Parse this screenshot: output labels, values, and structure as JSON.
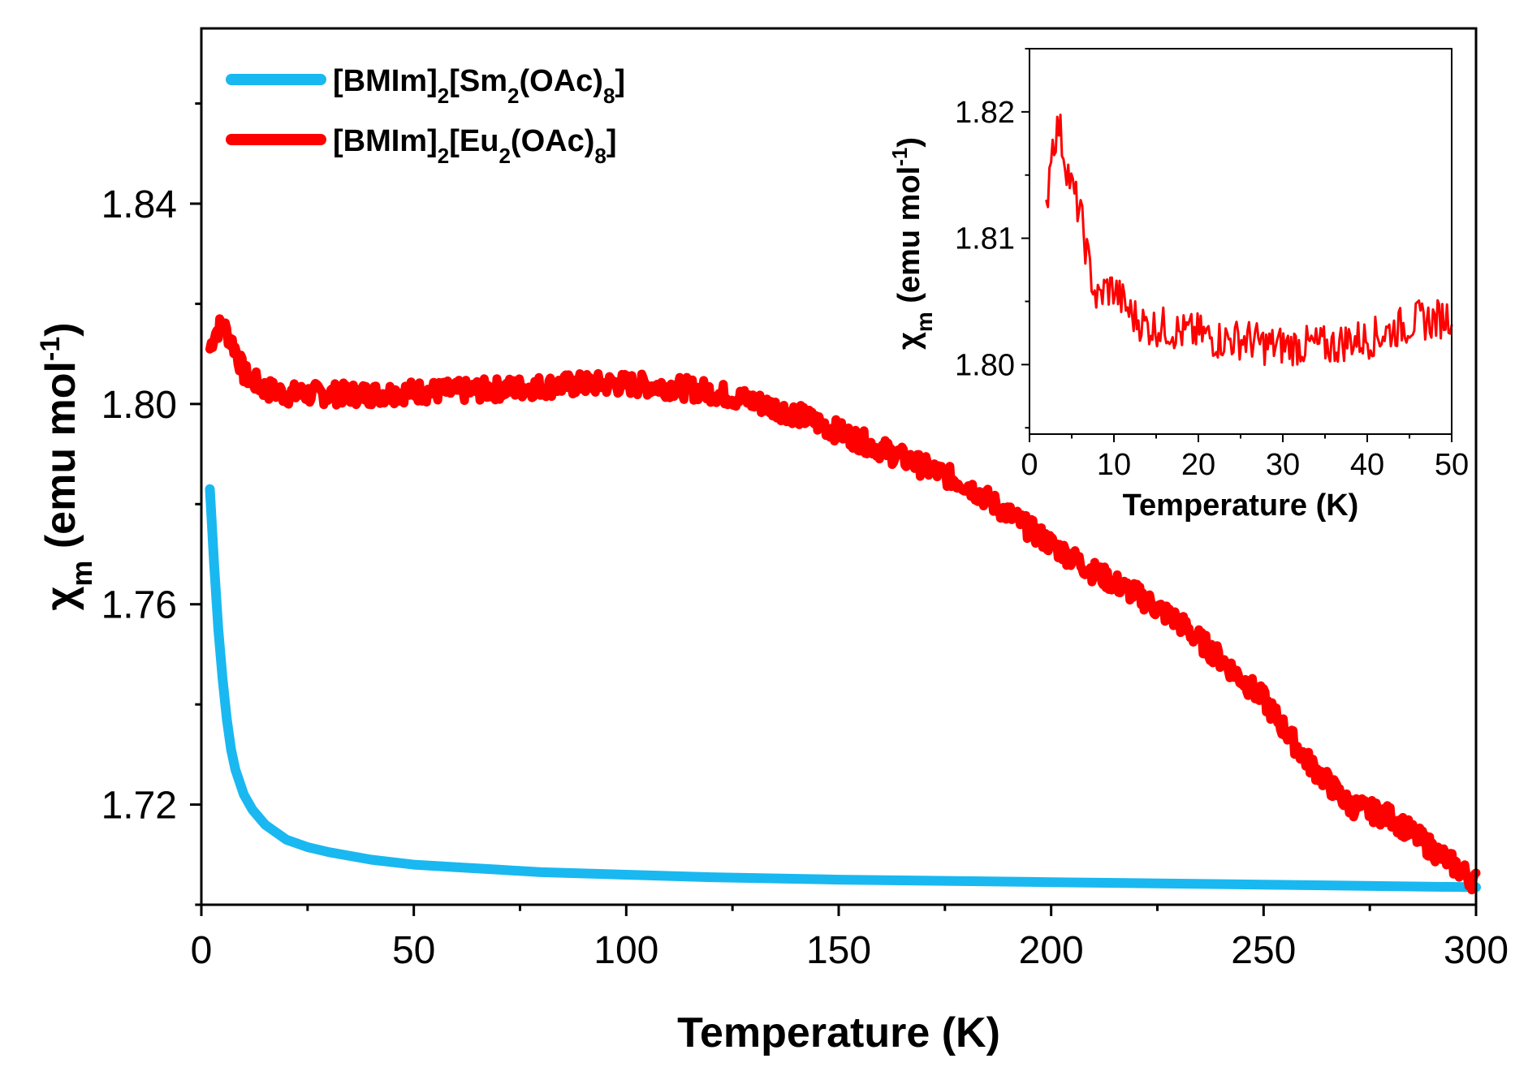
{
  "chart_data": [
    {
      "type": "line",
      "title": "",
      "xlabel": "Temperature (K)",
      "ylabel": "χm (emu mol-1)",
      "ylabel_parts": {
        "chi": "χ",
        "chi_sub": "m",
        "unit": " (emu mol",
        "unit_sup": "-1",
        "close": ")"
      },
      "xlim": [
        0,
        300
      ],
      "ylim": [
        1.7,
        1.875
      ],
      "xticks": [
        0,
        50,
        100,
        150,
        200,
        250,
        300
      ],
      "yticks": [
        1.72,
        1.76,
        1.8,
        1.84
      ],
      "xtick_labels": [
        "0",
        "50",
        "100",
        "150",
        "200",
        "250",
        "300"
      ],
      "ytick_labels": [
        "1.72",
        "1.76",
        "1.80",
        "1.84"
      ],
      "grid": false,
      "legend_position": "top-left",
      "series": [
        {
          "name": "[BMIm]2[Sm2(OAc)8]",
          "name_parts": [
            "[BMIm]",
            "2",
            "[Sm",
            "2",
            "(OAc)",
            "8",
            "]"
          ],
          "color": "#1ab8f0",
          "x": [
            2,
            3,
            4,
            5,
            6,
            7,
            8,
            10,
            12,
            15,
            20,
            25,
            30,
            40,
            50,
            60,
            70,
            80,
            100,
            120,
            150,
            200,
            250,
            300
          ],
          "y": [
            1.783,
            1.768,
            1.755,
            1.745,
            1.737,
            1.731,
            1.727,
            1.722,
            1.719,
            1.716,
            1.713,
            1.7115,
            1.7105,
            1.709,
            1.708,
            1.7075,
            1.707,
            1.7065,
            1.706,
            1.7055,
            1.705,
            1.7045,
            1.704,
            1.7035
          ]
        },
        {
          "name": "[BMIm]2[Eu2(OAc)8]",
          "name_parts": [
            "[BMIm]",
            "2",
            "[Eu",
            "2",
            "(OAc)",
            "8",
            "]"
          ],
          "color": "#ff0000",
          "x": [
            2,
            3,
            5,
            8,
            10,
            15,
            20,
            30,
            40,
            50,
            60,
            70,
            80,
            90,
            100,
            110,
            120,
            130,
            140,
            150,
            160,
            170,
            180,
            190,
            200,
            210,
            220,
            230,
            240,
            250,
            260,
            270,
            280,
            290,
            300
          ],
          "y": [
            1.811,
            1.814,
            1.816,
            1.811,
            1.806,
            1.803,
            1.802,
            1.802,
            1.802,
            1.8025,
            1.8025,
            1.803,
            1.8035,
            1.804,
            1.804,
            1.8035,
            1.8025,
            1.8005,
            1.798,
            1.7945,
            1.791,
            1.7875,
            1.784,
            1.778,
            1.772,
            1.7665,
            1.762,
            1.7565,
            1.749,
            1.741,
            1.729,
            1.72,
            1.7175,
            1.711,
            1.7045
          ]
        }
      ]
    },
    {
      "type": "line",
      "title": "",
      "xlabel": "Temperature (K)",
      "ylabel": "χm (emu mol-1)",
      "ylabel_parts": {
        "chi": "χ",
        "chi_sub": "m",
        "unit": " (emu mol",
        "unit_sup": "-1",
        "close": ")"
      },
      "xlim": [
        0,
        50
      ],
      "ylim": [
        1.7945,
        1.825
      ],
      "xticks": [
        0,
        10,
        20,
        30,
        40,
        50
      ],
      "yticks": [
        1.8,
        1.81,
        1.82
      ],
      "xtick_labels": [
        "0",
        "10",
        "20",
        "30",
        "40",
        "50"
      ],
      "ytick_labels": [
        "1.80",
        "1.81",
        "1.82"
      ],
      "grid": false,
      "legend_position": "none",
      "series": [
        {
          "name": "",
          "color": "#ff0000",
          "x": [
            2,
            2.5,
            3,
            3.5,
            4,
            5,
            6,
            7,
            8,
            9,
            10,
            12,
            14,
            16,
            18,
            20,
            22,
            24,
            26,
            28,
            30,
            32,
            34,
            36,
            38,
            40,
            42,
            44,
            46,
            48,
            50
          ],
          "y": [
            1.812,
            1.817,
            1.818,
            1.819,
            1.817,
            1.814,
            1.812,
            1.808,
            1.805,
            1.806,
            1.806,
            1.804,
            1.803,
            1.803,
            1.8025,
            1.8025,
            1.802,
            1.802,
            1.802,
            1.8015,
            1.8015,
            1.8015,
            1.8015,
            1.8015,
            1.802,
            1.802,
            1.8025,
            1.803,
            1.8035,
            1.8035,
            1.804
          ]
        }
      ]
    }
  ]
}
